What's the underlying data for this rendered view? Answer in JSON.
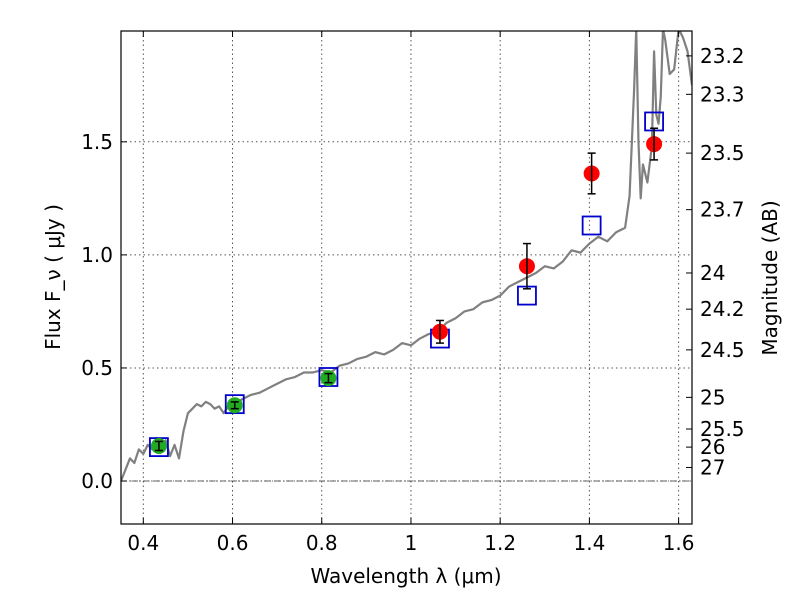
{
  "chart_data": {
    "type": "scatter",
    "xlabel": "Wavelength  λ (μm)",
    "ylabel": "Flux  F_ν  ( μJy )",
    "ylabel_right": "Magnitude (AB)",
    "xlim": [
      0.35,
      1.63
    ],
    "ylim": [
      -0.19,
      1.99
    ],
    "grid": true,
    "x_ticks": [
      {
        "value": 0.4,
        "label": "0.4"
      },
      {
        "value": 0.6,
        "label": "0.6"
      },
      {
        "value": 0.8,
        "label": "0.8"
      },
      {
        "value": 1.0,
        "label": "1"
      },
      {
        "value": 1.2,
        "label": "1.2"
      },
      {
        "value": 1.4,
        "label": "1.4"
      },
      {
        "value": 1.6,
        "label": "1.6"
      }
    ],
    "y_ticks": [
      {
        "value": 0.0,
        "label": "0.0"
      },
      {
        "value": 0.5,
        "label": "0.5"
      },
      {
        "value": 1.0,
        "label": "1.0"
      },
      {
        "value": 1.5,
        "label": "1.5"
      }
    ],
    "right_ticks": [
      {
        "label": "23.2",
        "flux": 1.88
      },
      {
        "label": "23.3",
        "flux": 1.71
      },
      {
        "label": "23.5",
        "flux": 1.45
      },
      {
        "label": "23.7",
        "flux": 1.2
      },
      {
        "label": "24",
        "flux": 0.92
      },
      {
        "label": "24.2",
        "flux": 0.76
      },
      {
        "label": "24.5",
        "flux": 0.58
      },
      {
        "label": "25",
        "flux": 0.37
      },
      {
        "label": "25.5",
        "flux": 0.23
      },
      {
        "label": "26",
        "flux": 0.15
      },
      {
        "label": "27",
        "flux": 0.06
      }
    ],
    "zero_line": 0.0,
    "series": [
      {
        "kind": "model",
        "color": "#808080",
        "x": [
          0.35,
          0.36,
          0.37,
          0.38,
          0.39,
          0.4,
          0.41,
          0.42,
          0.43,
          0.44,
          0.45,
          0.46,
          0.47,
          0.48,
          0.49,
          0.5,
          0.51,
          0.52,
          0.53,
          0.54,
          0.55,
          0.56,
          0.57,
          0.58,
          0.59,
          0.6,
          0.62,
          0.64,
          0.66,
          0.68,
          0.7,
          0.72,
          0.74,
          0.76,
          0.78,
          0.8,
          0.82,
          0.84,
          0.86,
          0.88,
          0.9,
          0.92,
          0.94,
          0.96,
          0.98,
          1.0,
          1.02,
          1.04,
          1.06,
          1.08,
          1.1,
          1.12,
          1.14,
          1.16,
          1.18,
          1.2,
          1.22,
          1.24,
          1.26,
          1.28,
          1.3,
          1.32,
          1.34,
          1.36,
          1.38,
          1.4,
          1.42,
          1.44,
          1.46,
          1.48,
          1.49,
          1.5,
          1.505,
          1.51,
          1.515,
          1.52,
          1.53,
          1.54,
          1.545,
          1.55,
          1.555,
          1.56,
          1.565,
          1.57,
          1.58,
          1.59,
          1.6,
          1.61,
          1.62,
          1.63
        ],
        "y": [
          0.0,
          0.05,
          0.1,
          0.08,
          0.14,
          0.12,
          0.16,
          0.14,
          0.19,
          0.15,
          0.18,
          0.11,
          0.16,
          0.1,
          0.22,
          0.3,
          0.32,
          0.34,
          0.33,
          0.35,
          0.34,
          0.32,
          0.33,
          0.3,
          0.33,
          0.34,
          0.36,
          0.38,
          0.39,
          0.41,
          0.43,
          0.45,
          0.46,
          0.48,
          0.48,
          0.49,
          0.48,
          0.51,
          0.52,
          0.54,
          0.55,
          0.57,
          0.56,
          0.58,
          0.61,
          0.6,
          0.63,
          0.65,
          0.66,
          0.7,
          0.72,
          0.75,
          0.76,
          0.79,
          0.8,
          0.82,
          0.86,
          0.88,
          0.9,
          0.92,
          0.95,
          0.94,
          0.97,
          1.02,
          1.01,
          1.05,
          1.08,
          1.06,
          1.1,
          1.12,
          1.26,
          1.72,
          2.0,
          1.5,
          1.25,
          1.4,
          1.32,
          1.48,
          1.9,
          1.62,
          1.58,
          1.7,
          2.0,
          1.95,
          1.8,
          1.82,
          2.0,
          1.96,
          1.9,
          1.75
        ]
      },
      {
        "kind": "model_photometry",
        "marker": "open-square",
        "color": "#0000cc",
        "x": [
          0.435,
          0.605,
          0.815,
          1.065,
          1.26,
          1.405,
          1.545
        ],
        "y": [
          0.15,
          0.34,
          0.46,
          0.63,
          0.82,
          1.13,
          1.59
        ]
      },
      {
        "kind": "observed_optical",
        "marker": "filled-circle",
        "color": "#22aa22",
        "x": [
          0.435,
          0.605,
          0.815
        ],
        "y": [
          0.155,
          0.335,
          0.455
        ],
        "err": [
          0.02,
          0.015,
          0.02
        ]
      },
      {
        "kind": "observed_nir",
        "marker": "filled-circle",
        "color": "#ff0000",
        "x": [
          1.065,
          1.26,
          1.405,
          1.545
        ],
        "y": [
          0.66,
          0.95,
          1.36,
          1.49
        ],
        "err": [
          0.05,
          0.1,
          0.09,
          0.07
        ]
      }
    ]
  }
}
